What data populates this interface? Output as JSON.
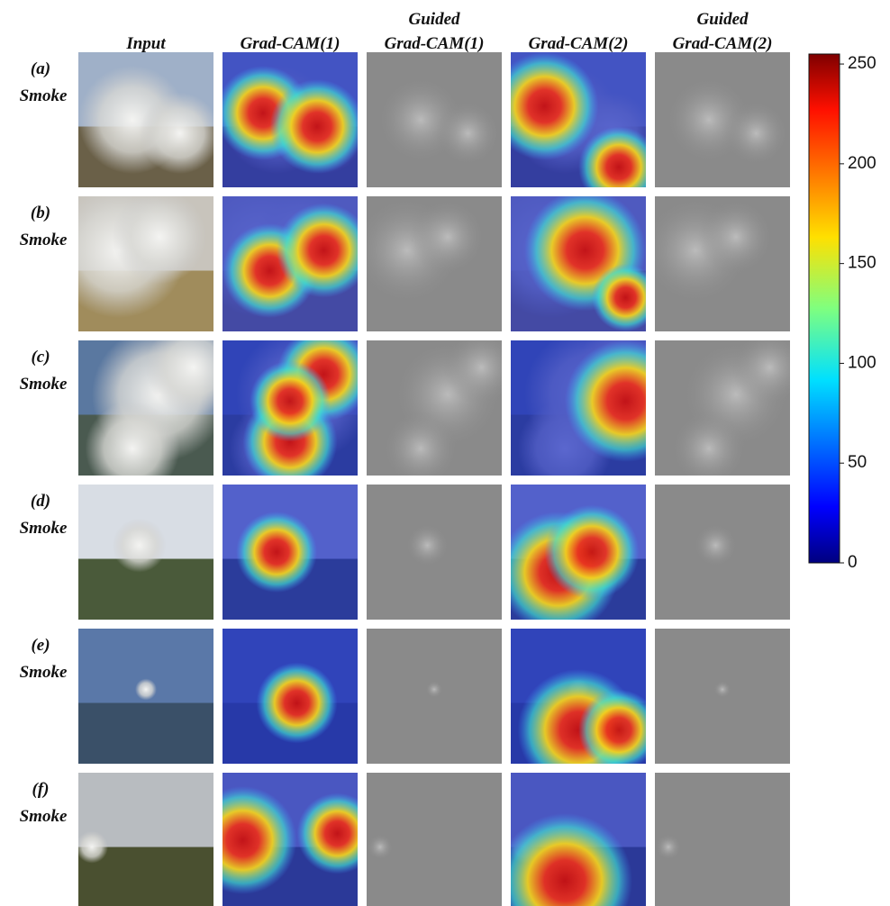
{
  "header": {
    "columns": [
      {
        "lines": [
          "Input"
        ]
      },
      {
        "lines": [
          "Grad-CAM(1)"
        ]
      },
      {
        "lines": [
          "Guided",
          "Grad-CAM(1)"
        ]
      },
      {
        "lines": [
          "Grad-CAM(2)"
        ]
      },
      {
        "lines": [
          "Guided",
          "Grad-CAM(2)"
        ]
      }
    ]
  },
  "rows": [
    {
      "label": "(a)",
      "class": "Smoke"
    },
    {
      "label": "(b)",
      "class": "Smoke"
    },
    {
      "label": "(c)",
      "class": "Smoke"
    },
    {
      "label": "(d)",
      "class": "Smoke"
    },
    {
      "label": "(e)",
      "class": "Smoke"
    },
    {
      "label": "(f)",
      "class": "Smoke"
    }
  ],
  "colorbar": {
    "lim": [
      0,
      255
    ],
    "ticks": [
      0,
      50,
      100,
      150,
      200,
      250
    ]
  }
}
